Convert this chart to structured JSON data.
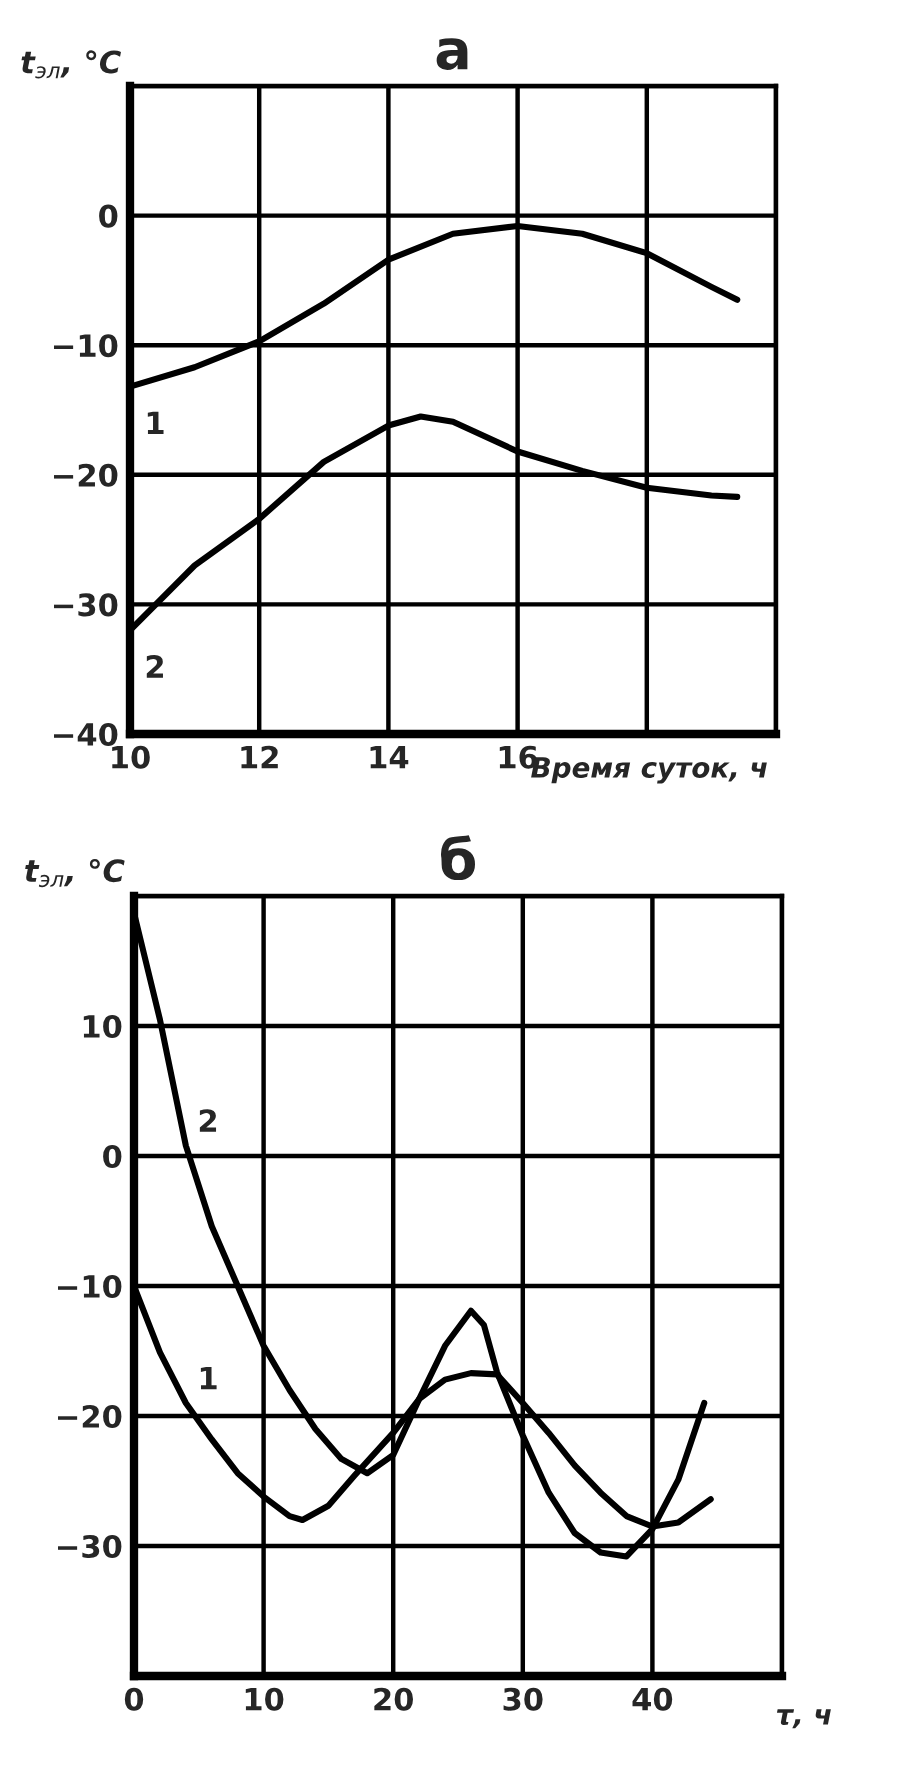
{
  "chart_data": [
    {
      "type": "line",
      "title": "а",
      "ylabel": "t$_{эл}$, °C",
      "xlabel": "Время суток, ч",
      "xlim": [
        10,
        20
      ],
      "ylim": [
        -40,
        10
      ],
      "xticks": [
        10,
        12,
        14,
        16,
        {
          "value": 18,
          "label": null
        },
        {
          "value": 20,
          "label": null
        }
      ],
      "yticks": [
        -40,
        -30,
        -20,
        -10,
        0,
        {
          "value": 10,
          "label": null
        }
      ],
      "grid": true,
      "marker": "none",
      "line_style": "solid",
      "series": [
        {
          "name": "1",
          "color": "#000000",
          "x": [
            10,
            11,
            12,
            13,
            14,
            15,
            16,
            17,
            18,
            19,
            19.4
          ],
          "values": [
            -13.2,
            -11.7,
            -9.7,
            -6.8,
            -3.4,
            -1.4,
            -0.8,
            -1.4,
            -2.9,
            -5.5,
            -6.5
          ]
        },
        {
          "name": "2",
          "color": "#000000",
          "x": [
            10,
            11,
            12,
            13,
            14,
            14.5,
            15,
            16,
            17,
            18,
            19,
            19.4
          ],
          "values": [
            -32,
            -27,
            -23.4,
            -19,
            -16.2,
            -15.5,
            -15.9,
            -18.2,
            -19.7,
            -21,
            -21.6,
            -21.7
          ]
        }
      ]
    },
    {
      "type": "line",
      "title": "б",
      "ylabel": "t$_{эл}$, °C",
      "xlabel": "τ, ч",
      "xlim": [
        0,
        50
      ],
      "ylim": [
        -40,
        20
      ],
      "xticks": [
        0,
        10,
        20,
        30,
        40,
        {
          "value": 50,
          "label": null
        }
      ],
      "yticks": [
        {
          "value": -40,
          "label": null
        },
        -30,
        -20,
        -10,
        0,
        10,
        {
          "value": 20,
          "label": null
        }
      ],
      "grid": true,
      "marker": "none",
      "line_style": "solid",
      "series": [
        {
          "name": "1",
          "color": "#000000",
          "x": [
            0,
            2,
            4,
            6,
            8,
            10,
            12,
            13,
            15,
            17,
            20,
            22,
            24,
            26,
            28,
            30,
            32,
            34,
            36,
            38,
            40,
            42,
            44.5
          ],
          "values": [
            -10,
            -15.1,
            -19,
            -21.8,
            -24.4,
            -26.2,
            -27.7,
            -28,
            -26.9,
            -24.6,
            -21.3,
            -18.7,
            -17.2,
            -16.7,
            -16.8,
            -19,
            -21.3,
            -23.8,
            -25.9,
            -27.7,
            -28.5,
            -28.2,
            -26.4
          ]
        },
        {
          "name": "2",
          "color": "#000000",
          "x": [
            0,
            2,
            4,
            6,
            8,
            10,
            12,
            14,
            16,
            18,
            20,
            22,
            24,
            26,
            27,
            28,
            30,
            32,
            34,
            36,
            38,
            40,
            42,
            44
          ],
          "values": [
            18.7,
            10.5,
            0.8,
            -5.4,
            -10,
            -14.6,
            -18,
            -21,
            -23.3,
            -24.4,
            -23,
            -18.7,
            -14.6,
            -11.9,
            -13,
            -16.6,
            -21.5,
            -25.9,
            -29,
            -30.5,
            -30.8,
            -28.7,
            -24.9,
            -19
          ]
        }
      ]
    }
  ]
}
